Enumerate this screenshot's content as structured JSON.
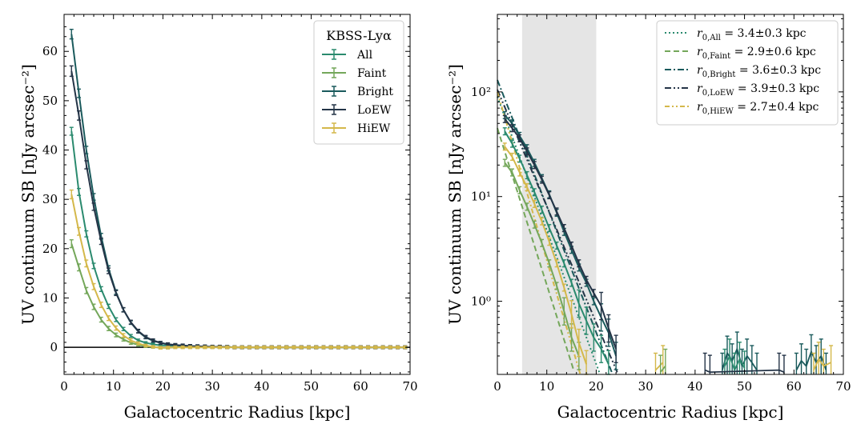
{
  "colors": {
    "All": "#2a8a6e",
    "Faint": "#74a75a",
    "Bright": "#1a5a5c",
    "LoEW": "#243447",
    "HiEW": "#d4b84a",
    "shade": "#e5e5e5"
  },
  "chart_data": [
    {
      "type": "line",
      "xlabel": "Galactocentric Radius [kpc]",
      "ylabel": "UV continuum SB [nJy arcsec⁻²]",
      "xlim": [
        0,
        70
      ],
      "ylim": [
        -5.5,
        67.5
      ],
      "xticks": [
        0,
        10,
        20,
        30,
        40,
        50,
        60,
        70
      ],
      "yticks": [
        0,
        10,
        20,
        30,
        40,
        50,
        60
      ],
      "zero_line": 0,
      "legend": {
        "title": "KBSS-Lyα",
        "placement": "top-right"
      },
      "x": [
        1.5,
        3,
        4.5,
        6,
        7.5,
        9,
        10.5,
        12,
        13.5,
        15,
        16.5,
        18,
        19.5,
        21,
        22.5,
        24,
        25.5,
        27,
        28.5,
        30,
        31.5,
        33,
        34.5,
        36,
        37.5,
        39,
        40.5,
        42,
        43.5,
        45,
        46.5,
        48,
        49.5,
        51,
        52.5,
        54,
        55.5,
        57,
        58.5,
        60,
        61.5,
        63,
        64.5,
        66,
        67.5,
        69
      ],
      "series": [
        {
          "name": "All",
          "values": [
            43.8,
            31.5,
            23,
            16.5,
            11.8,
            8.3,
            5.6,
            3.7,
            2.3,
            1.4,
            0.9,
            0.6,
            0.4,
            0.35,
            0.3,
            0.3,
            0.2,
            0.15,
            0.1,
            0.1,
            0.05,
            0.05,
            0,
            0,
            0,
            0,
            0,
            0,
            0,
            0,
            0,
            0,
            0,
            0,
            0,
            0,
            0,
            0,
            0,
            0,
            0,
            0,
            0,
            0,
            0,
            0
          ],
          "err": 0.9
        },
        {
          "name": "Faint",
          "values": [
            21,
            16.2,
            11.5,
            8.2,
            5.6,
            3.8,
            2.5,
            1.6,
            0.9,
            0.5,
            0.2,
            0.05,
            -0.1,
            -0.1,
            0,
            0,
            0,
            0,
            0,
            0,
            0,
            0,
            0,
            0,
            0,
            0,
            0,
            0,
            0,
            0,
            0,
            0,
            0,
            0,
            0,
            0,
            0,
            0,
            0,
            0,
            0,
            0,
            0,
            0,
            0,
            0
          ],
          "err": 0.9
        },
        {
          "name": "Bright",
          "values": [
            63.5,
            51.5,
            40,
            30.5,
            22.5,
            16,
            11.2,
            7.6,
            5,
            3.2,
            2,
            1.3,
            0.9,
            0.6,
            0.45,
            0.35,
            0.25,
            0.2,
            0.15,
            0.1,
            0.1,
            0.05,
            0,
            0,
            0,
            0,
            0,
            0,
            0,
            0,
            0,
            0,
            0,
            0,
            0,
            0,
            0,
            0,
            0,
            0,
            0,
            0,
            0,
            0,
            0,
            0
          ],
          "err": 1.1
        },
        {
          "name": "LoEW",
          "values": [
            56,
            47,
            37,
            28.5,
            21.5,
            15.5,
            11,
            7.6,
            5.1,
            3.3,
            2.1,
            1.4,
            0.9,
            0.6,
            0.45,
            0.35,
            0.25,
            0.2,
            0.15,
            0.1,
            0.1,
            0.05,
            0,
            0,
            0,
            0,
            0,
            0,
            0,
            0,
            0,
            0,
            0,
            0,
            0,
            0,
            0,
            0,
            0,
            0,
            0,
            0,
            0,
            0,
            0,
            0
          ],
          "err": 1.2
        },
        {
          "name": "HiEW",
          "values": [
            31,
            23.5,
            17,
            12.3,
            8.6,
            5.9,
            3.9,
            2.4,
            1.4,
            0.8,
            0.35,
            0.1,
            -0.1,
            -0.05,
            0,
            0,
            0,
            0,
            0,
            0,
            0,
            0,
            0,
            0,
            0,
            0,
            0,
            0,
            0,
            0,
            0,
            0,
            0,
            0,
            0,
            0,
            0,
            0,
            0,
            0,
            0,
            0,
            0,
            0,
            0,
            0
          ],
          "err": 1.0
        }
      ]
    },
    {
      "type": "line",
      "xlabel": "Galactocentric Radius [kpc]",
      "ylabel": "UV continuum SB [nJy arcsec⁻²]",
      "yscale": "log",
      "xlim": [
        0,
        70
      ],
      "ylim": [
        0.2,
        550
      ],
      "xticks": [
        0,
        10,
        20,
        30,
        40,
        50,
        60,
        70
      ],
      "yticks": [
        1,
        10,
        100
      ],
      "ytick_labels": [
        "10⁰",
        "10¹",
        "10²"
      ],
      "shaded_region": [
        5,
        20
      ],
      "legend": {
        "placement": "top-right"
      },
      "fits": [
        {
          "name": "All",
          "label": "r0,All = 3.4±0.3 kpc",
          "sub": "0,All",
          "value": "3.4±0.3 kpc",
          "style": "dotted",
          "A": 90,
          "r0": 3.4
        },
        {
          "name": "Faint",
          "label": "r0,Faint = 2.9±0.6 kpc",
          "sub": "0,Faint",
          "value": "2.9±0.6 kpc",
          "style": "dashed",
          "A": 45,
          "r0": 2.9
        },
        {
          "name": "Bright",
          "label": "r0,Bright = 3.6±0.3 kpc",
          "sub": "0,Bright",
          "value": "3.6±0.3 kpc",
          "style": "dashdot",
          "A": 130,
          "r0": 3.6
        },
        {
          "name": "LoEW",
          "label": "r0,LoEW = 3.9±0.3 kpc",
          "sub": "0,LoEW",
          "value": "3.9±0.3 kpc",
          "style": "dashdotdot",
          "A": 105,
          "r0": 3.9
        },
        {
          "name": "HiEW",
          "label": "r0,HiEW = 2.7±0.4 kpc",
          "sub": "0,HiEW",
          "value": "2.7±0.4 kpc",
          "style": "dashdotdot2",
          "A": 100,
          "r0": 2.7
        }
      ],
      "x": [
        1.5,
        3,
        4.5,
        6,
        7.5,
        9,
        10.5,
        12,
        13.5,
        15,
        16.5,
        18,
        19.5,
        21,
        22.5,
        24
      ],
      "series": [
        {
          "name": "All",
          "values": [
            42,
            32,
            23,
            16,
            11,
            7.5,
            5,
            3.4,
            2.3,
            1.5,
            0.95,
            0.65,
            0.45,
            0.35,
            0.25,
            null
          ]
        },
        {
          "name": "Faint",
          "values": [
            21,
            17,
            11.5,
            8,
            5.4,
            3.6,
            2.3,
            1.4,
            0.8,
            0.45,
            0.3,
            null,
            null,
            null,
            null,
            null
          ]
        },
        {
          "name": "Bright",
          "values": [
            60,
            50,
            38,
            29,
            21,
            15,
            10.5,
            7,
            4.6,
            3.1,
            2.1,
            1.5,
            1.0,
            0.7,
            0.5,
            0.3
          ]
        },
        {
          "name": "LoEW",
          "values": [
            55,
            45,
            36,
            27,
            20,
            14.5,
            10.3,
            7.2,
            5,
            3.4,
            2.3,
            1.6,
            1.2,
            0.9,
            0.55,
            0.35
          ]
        },
        {
          "name": "HiEW",
          "values": [
            30,
            24,
            17,
            12.3,
            8.5,
            5.8,
            3.7,
            2.3,
            1.35,
            0.75,
            0.4,
            0.25,
            null,
            null,
            null,
            null
          ]
        }
      ]
    }
  ]
}
